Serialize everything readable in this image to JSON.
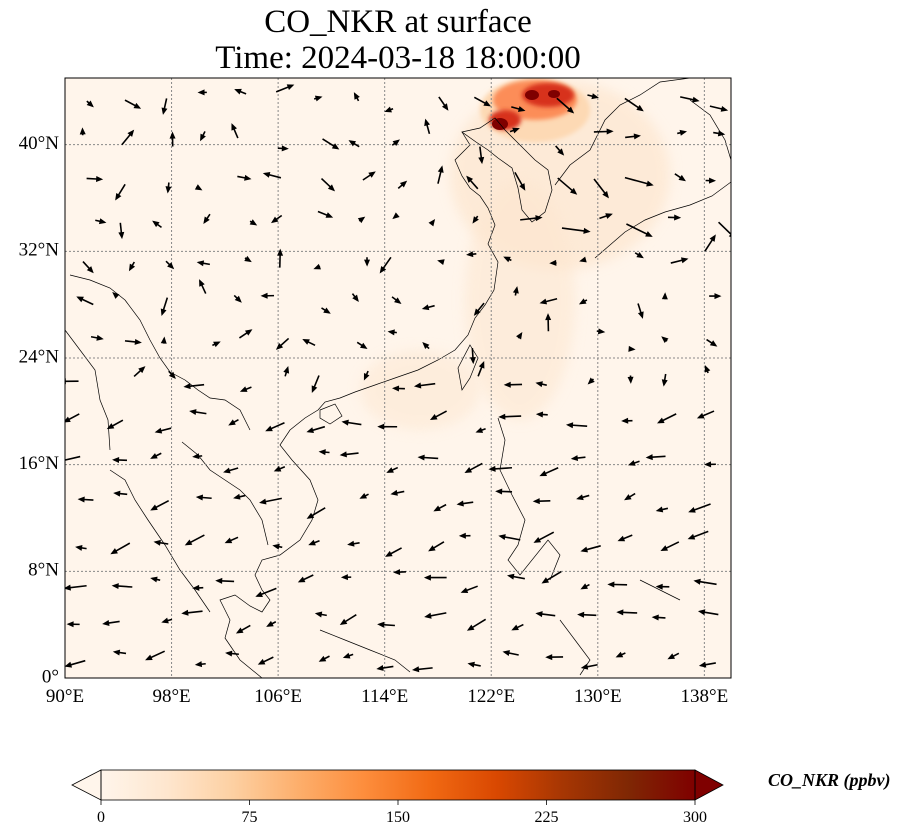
{
  "title": {
    "line1": "CO_NKR at surface",
    "line2": "Time: 2024-03-18 18:00:00"
  },
  "map": {
    "extent": {
      "lon_min": 90,
      "lon_max": 140,
      "lat_min": 0,
      "lat_max": 45
    },
    "lon_ticks": [
      90,
      98,
      106,
      114,
      122,
      130,
      138
    ],
    "lat_ticks": [
      0,
      8,
      16,
      24,
      32,
      40
    ],
    "lon_labels": [
      "90°E",
      "98°E",
      "106°E",
      "114°E",
      "122°E",
      "130°E",
      "138°E"
    ],
    "lat_labels": [
      "0°",
      "8°N",
      "16°N",
      "24°N",
      "32°N",
      "40°N"
    ],
    "gridlines": true,
    "field_background_color": "#fff5eb",
    "plume_colors": [
      "#fdd9b4",
      "#fc8d59",
      "#d7301f",
      "#7f0000"
    ]
  },
  "colorbar": {
    "label": "CO_NKR (ppbv)",
    "min": 0,
    "max": 300,
    "ticks": [
      "0",
      "75",
      "150",
      "225",
      "300"
    ],
    "extend": "both",
    "colormap": [
      "#fff5eb",
      "#fee6ce",
      "#fdd0a2",
      "#fdae6b",
      "#fd8d3c",
      "#f16913",
      "#d94801",
      "#a63603",
      "#7f2704",
      "#7f0000"
    ]
  }
}
